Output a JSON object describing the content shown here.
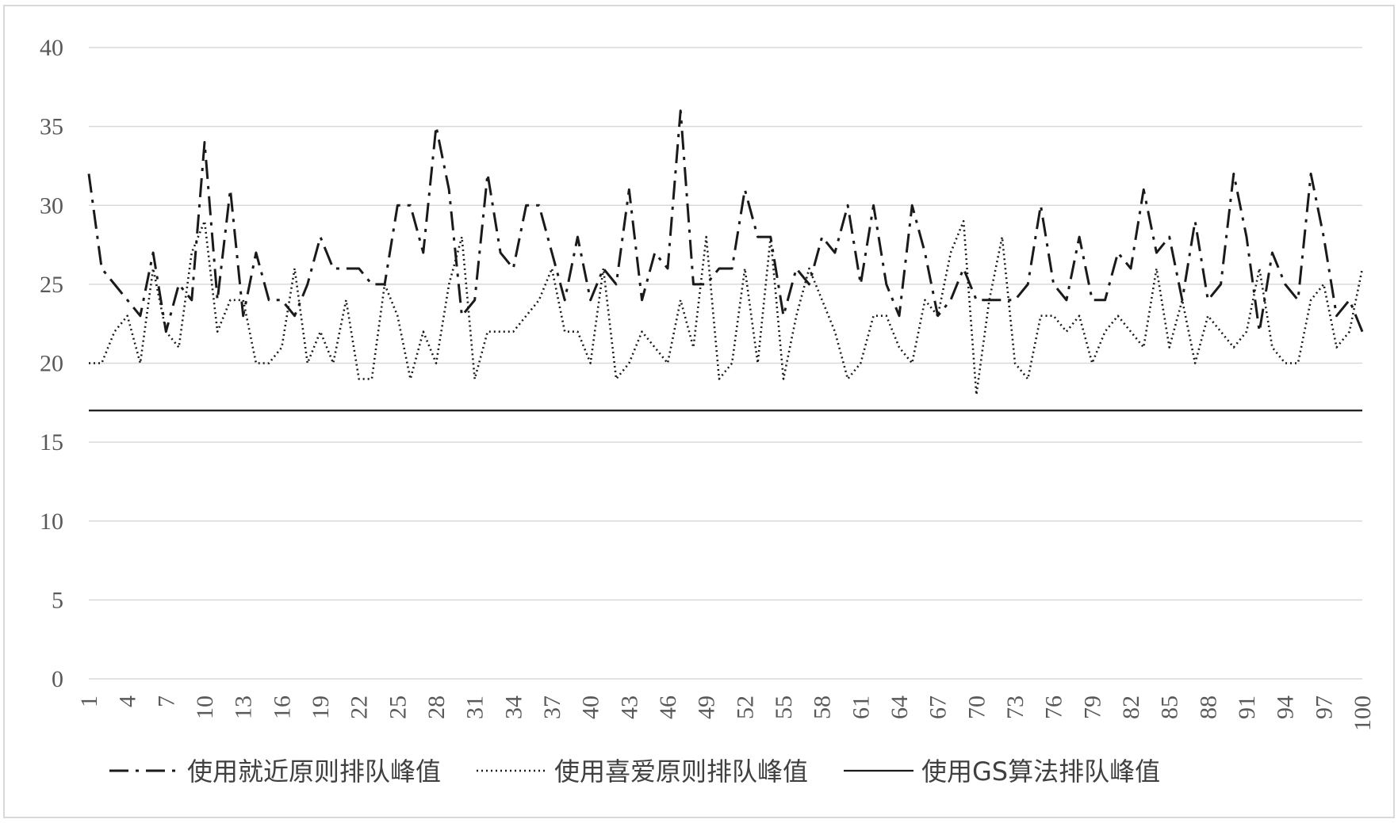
{
  "chart_data": {
    "type": "line",
    "title": "",
    "xlabel": "",
    "ylabel": "",
    "ylim": [
      0,
      40
    ],
    "yticks": [
      "0",
      "5",
      "10",
      "15",
      "20",
      "25",
      "30",
      "35",
      "40"
    ],
    "grid": true,
    "legend_position": "bottom",
    "x": [
      1,
      2,
      3,
      4,
      5,
      6,
      7,
      8,
      9,
      10,
      11,
      12,
      13,
      14,
      15,
      16,
      17,
      18,
      19,
      20,
      21,
      22,
      23,
      24,
      25,
      26,
      27,
      28,
      29,
      30,
      31,
      32,
      33,
      34,
      35,
      36,
      37,
      38,
      39,
      40,
      41,
      42,
      43,
      44,
      45,
      46,
      47,
      48,
      49,
      50,
      51,
      52,
      53,
      54,
      55,
      56,
      57,
      58,
      59,
      60,
      61,
      62,
      63,
      64,
      65,
      66,
      67,
      68,
      69,
      70,
      71,
      72,
      73,
      74,
      75,
      76,
      77,
      78,
      79,
      80,
      81,
      82,
      83,
      84,
      85,
      86,
      87,
      88,
      89,
      90,
      91,
      92,
      93,
      94,
      95,
      96,
      97,
      98,
      99,
      100
    ],
    "xticks": [
      "1",
      "4",
      "7",
      "10",
      "13",
      "16",
      "19",
      "22",
      "25",
      "28",
      "31",
      "34",
      "37",
      "40",
      "43",
      "46",
      "49",
      "52",
      "55",
      "58",
      "61",
      "64",
      "67",
      "70",
      "73",
      "76",
      "79",
      "82",
      "85",
      "88",
      "91",
      "94",
      "97",
      "100"
    ],
    "series": [
      {
        "name": "使用就近原则排队峰值",
        "dash": "dashdot",
        "color": "#1a1a1a",
        "values": [
          32,
          26,
          25,
          24,
          23,
          27,
          22,
          25,
          24,
          34,
          24,
          31,
          23,
          27,
          24,
          24,
          23,
          25,
          28,
          26,
          26,
          26,
          25,
          25,
          30,
          30,
          27,
          35,
          31,
          23,
          24,
          32,
          27,
          26,
          30,
          30,
          27,
          24,
          28,
          24,
          26,
          25,
          31,
          24,
          27,
          26,
          36,
          25,
          25,
          26,
          26,
          31,
          28,
          28,
          23,
          26,
          25,
          28,
          27,
          30,
          25,
          30,
          25,
          23,
          30,
          27,
          23,
          24,
          26,
          24,
          24,
          24,
          24,
          25,
          30,
          25,
          24,
          28,
          24,
          24,
          27,
          26,
          31,
          27,
          28,
          24,
          29,
          24,
          25,
          32,
          28,
          22,
          27,
          25,
          24,
          32,
          28,
          23,
          24,
          22
        ]
      },
      {
        "name": "使用喜爱原则排队峰值",
        "dash": "dotted",
        "color": "#1a1a1a",
        "values": [
          20,
          20,
          22,
          23,
          20,
          26,
          22,
          21,
          27,
          29,
          22,
          24,
          24,
          20,
          20,
          21,
          26,
          20,
          22,
          20,
          24,
          19,
          19,
          25,
          23,
          19,
          22,
          20,
          25,
          28,
          19,
          22,
          22,
          22,
          23,
          24,
          26,
          22,
          22,
          20,
          26,
          19,
          20,
          22,
          21,
          20,
          24,
          21,
          28,
          19,
          20,
          26,
          20,
          28,
          19,
          23,
          26,
          24,
          22,
          19,
          20,
          23,
          23,
          21,
          20,
          24,
          23,
          27,
          29,
          18,
          24,
          28,
          20,
          19,
          23,
          23,
          22,
          23,
          20,
          22,
          23,
          22,
          21,
          26,
          21,
          24,
          20,
          23,
          22,
          21,
          22,
          26,
          21,
          20,
          20,
          24,
          25,
          21,
          22,
          26
        ]
      },
      {
        "name": "使用GS算法排队峰值",
        "dash": "solid",
        "color": "#1a1a1a",
        "values": [
          17,
          17,
          17,
          17,
          17,
          17,
          17,
          17,
          17,
          17,
          17,
          17,
          17,
          17,
          17,
          17,
          17,
          17,
          17,
          17,
          17,
          17,
          17,
          17,
          17,
          17,
          17,
          17,
          17,
          17,
          17,
          17,
          17,
          17,
          17,
          17,
          17,
          17,
          17,
          17,
          17,
          17,
          17,
          17,
          17,
          17,
          17,
          17,
          17,
          17,
          17,
          17,
          17,
          17,
          17,
          17,
          17,
          17,
          17,
          17,
          17,
          17,
          17,
          17,
          17,
          17,
          17,
          17,
          17,
          17,
          17,
          17,
          17,
          17,
          17,
          17,
          17,
          17,
          17,
          17,
          17,
          17,
          17,
          17,
          17,
          17,
          17,
          17,
          17,
          17,
          17,
          17,
          17,
          17,
          17,
          17,
          17,
          17,
          17,
          17
        ]
      }
    ]
  }
}
